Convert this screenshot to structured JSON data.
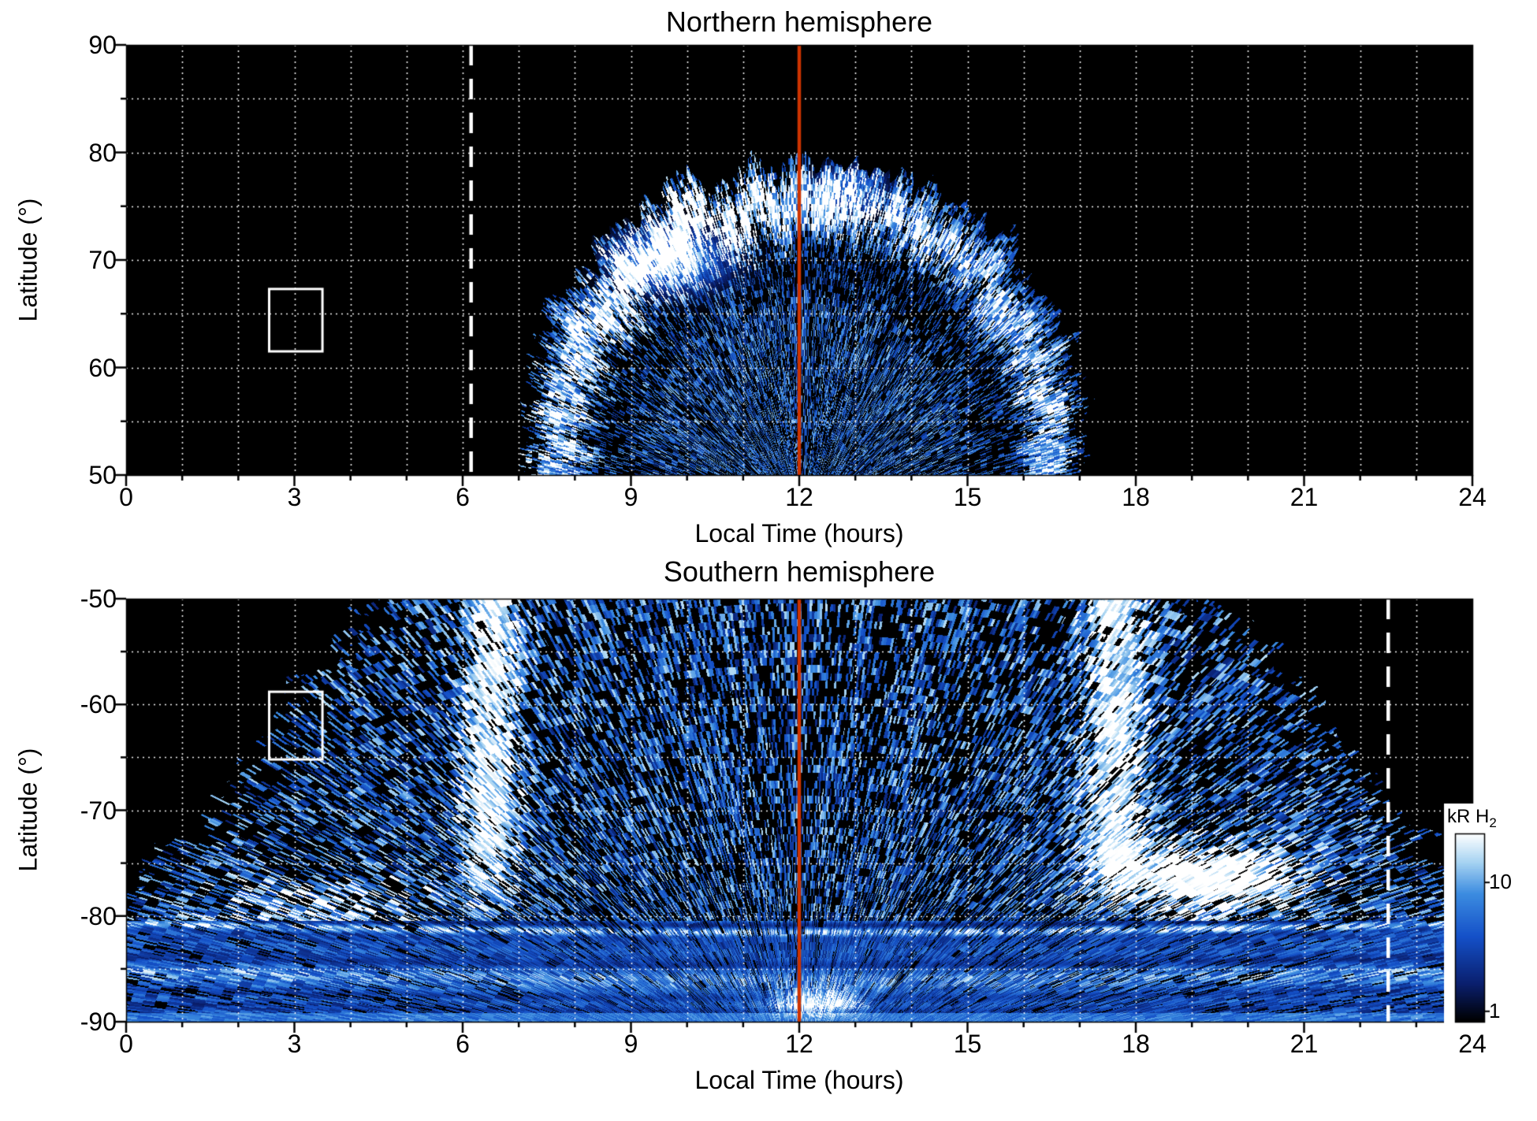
{
  "figure": {
    "background": "#ffffff",
    "plot_background": "#000000"
  },
  "chart_data": [
    {
      "type": "heatmap",
      "title": "Northern hemisphere",
      "xlabel": "Local Time (hours)",
      "ylabel": "Latitude (°)",
      "x_range": [
        0,
        24
      ],
      "y_range": [
        50,
        90
      ],
      "x_ticks": [
        0,
        3,
        6,
        9,
        12,
        15,
        18,
        21,
        24
      ],
      "y_ticks": [
        90,
        80,
        70,
        60,
        50
      ],
      "grid": {
        "style": "dotted",
        "color": "#ffffff",
        "x_every_hours": 1,
        "y_every_deg": 5
      },
      "noon_meridian_line": {
        "x": 12,
        "color": "#cc3300"
      },
      "dashed_marker_line": {
        "x": 6.15,
        "color": "#ffffff"
      },
      "selection_box": {
        "x": [
          2.55,
          3.5
        ],
        "y": [
          61.5,
          67.3
        ],
        "color": "#ffffff"
      },
      "emission": {
        "description": "H2 auroral emission dome centered near local noon: bright poleward arc at 70-79 deg latitude, brightest (white) on the morning side near 09:40 LT, darker gap at 64-70 deg, sparse speckled emission filling 50-65 deg between about 07:00 and 17:00 LT; black elsewhere.",
        "units": "kR H2",
        "center_lt": 12.1,
        "base_lat": 50,
        "top_lat": 79.5,
        "halfwidth_hours": 5.2,
        "arc_band_frac": 0.3,
        "gap_frac": 0.42,
        "speckle_density": 0.52,
        "hotspots": [
          {
            "lt": 9.7,
            "lat": 70,
            "sigma_lt": 0.9,
            "sigma_lat": 2.6,
            "amp": 1.25
          },
          {
            "lt": 12.9,
            "lat": 76.5,
            "sigma_lt": 0.6,
            "sigma_lat": 2.2,
            "amp": 0.8
          }
        ]
      }
    },
    {
      "type": "heatmap",
      "title": "Southern hemisphere",
      "xlabel": "Local Time (hours)",
      "ylabel": "Latitude (°)",
      "x_range": [
        0,
        24
      ],
      "y_range": [
        -90,
        -50
      ],
      "x_ticks": [
        0,
        3,
        6,
        9,
        12,
        15,
        18,
        21,
        24
      ],
      "y_ticks": [
        -50,
        -60,
        -70,
        -80,
        -90
      ],
      "grid": {
        "style": "dotted",
        "color": "#ffffff",
        "x_every_hours": 1,
        "y_every_deg": 5
      },
      "noon_meridian_line": {
        "x": 12,
        "color": "#cc3300"
      },
      "dashed_marker_line": {
        "x": 22.5,
        "color": "#ffffff"
      },
      "selection_box": {
        "x": [
          2.55,
          3.5
        ],
        "y": [
          -65.2,
          -58.8
        ],
        "color": "#ffffff"
      },
      "emission": {
        "description": "Dense speckled H2 emission funnel widening toward the pole: spans ~04:30-19:30 LT at -50 and all local times poleward of -80; bright vertical lanes near 06:30 and 17:40 LT, large white streaked patch at 17:30-21:30 LT / -71 to -80, horizontal banded arcs covering all LT poleward of -80 with a white patch near noon at -88; black elsewhere.",
        "units": "kR H2",
        "center_lt": 12,
        "wing_halfwidth_at_50": 7.7,
        "wing_widening_per_deg": 0.155,
        "polar_band_start_lat": -80.5,
        "speckle_density": 0.5,
        "bright_columns": [
          {
            "lt": 6.5,
            "sigma": 0.55
          },
          {
            "lt": 17.65,
            "sigma": 0.6
          }
        ],
        "hotspots": [
          {
            "lt": 19.3,
            "lat": -76.5,
            "sigma_lt": 1.5,
            "sigma_lat": 3.0,
            "amp": 1.4
          },
          {
            "lt": 3.6,
            "lat": -79.0,
            "sigma_lt": 2.0,
            "sigma_lat": 2.6,
            "amp": 0.5
          },
          {
            "lt": 12.3,
            "lat": -88.2,
            "sigma_lt": 0.8,
            "sigma_lat": 1.1,
            "amp": 1.1
          }
        ]
      }
    }
  ],
  "colorbar": {
    "label_main": "kR H",
    "label_sub": "2",
    "scale": {
      "type": "log",
      "min": 0.83,
      "max": 24
    },
    "tick_labels": [
      "10",
      "1"
    ],
    "tick_values": [
      10,
      1
    ],
    "stops": [
      {
        "t": 0.0,
        "color": "#000000"
      },
      {
        "t": 0.2,
        "color": "#0a1f6e"
      },
      {
        "t": 0.45,
        "color": "#1450c8"
      },
      {
        "t": 0.68,
        "color": "#3c8ce0"
      },
      {
        "t": 0.85,
        "color": "#a8d4f2"
      },
      {
        "t": 1.0,
        "color": "#ffffff"
      }
    ]
  }
}
